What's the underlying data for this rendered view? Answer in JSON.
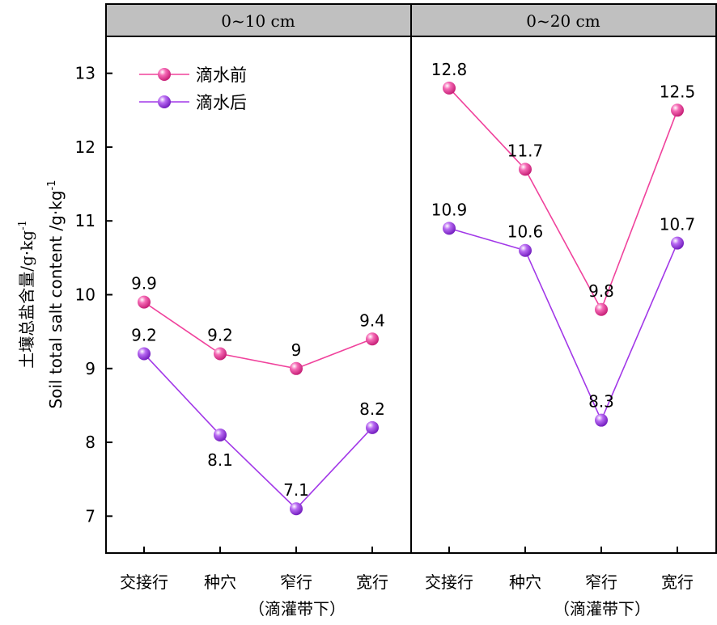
{
  "chart_data": {
    "type": "line",
    "ylabel_cn": "土壤总盐含量/g·kg",
    "ylabel_cn_sup": "-1",
    "ylabel_en": "Soil total salt content /g·kg",
    "ylabel_en_sup": "-1",
    "ylim": [
      6.5,
      13.5
    ],
    "yticks": [
      "7",
      "8",
      "9",
      "10",
      "11",
      "12",
      "13"
    ],
    "categories": [
      "交接行",
      "种穴",
      "窄行",
      "宽行"
    ],
    "category_note": "（滴灌带下）",
    "legend": {
      "placement": "top-left"
    },
    "series_colors": {
      "before": "#f0429c",
      "after": "#a238e8"
    },
    "panels": [
      {
        "title": "0~10 cm",
        "series": [
          {
            "name": "滴水前",
            "values": [
              9.9,
              9.2,
              9.0,
              9.4
            ],
            "labels": [
              "9.9",
              "9.2",
              "9",
              "9.4"
            ]
          },
          {
            "name": "滴水后",
            "values": [
              9.2,
              8.1,
              7.1,
              8.2
            ],
            "labels": [
              "9.2",
              "8.1",
              "7.1",
              "8.2"
            ]
          }
        ]
      },
      {
        "title": "0~20 cm",
        "series": [
          {
            "name": "滴水前",
            "values": [
              12.8,
              11.7,
              9.8,
              12.5
            ],
            "labels": [
              "12.8",
              "11.7",
              "9.8",
              "12.5"
            ]
          },
          {
            "name": "滴水后",
            "values": [
              10.9,
              10.6,
              8.3,
              10.7
            ],
            "labels": [
              "10.9",
              "10.6",
              "8.3",
              "10.7"
            ]
          }
        ]
      }
    ]
  }
}
